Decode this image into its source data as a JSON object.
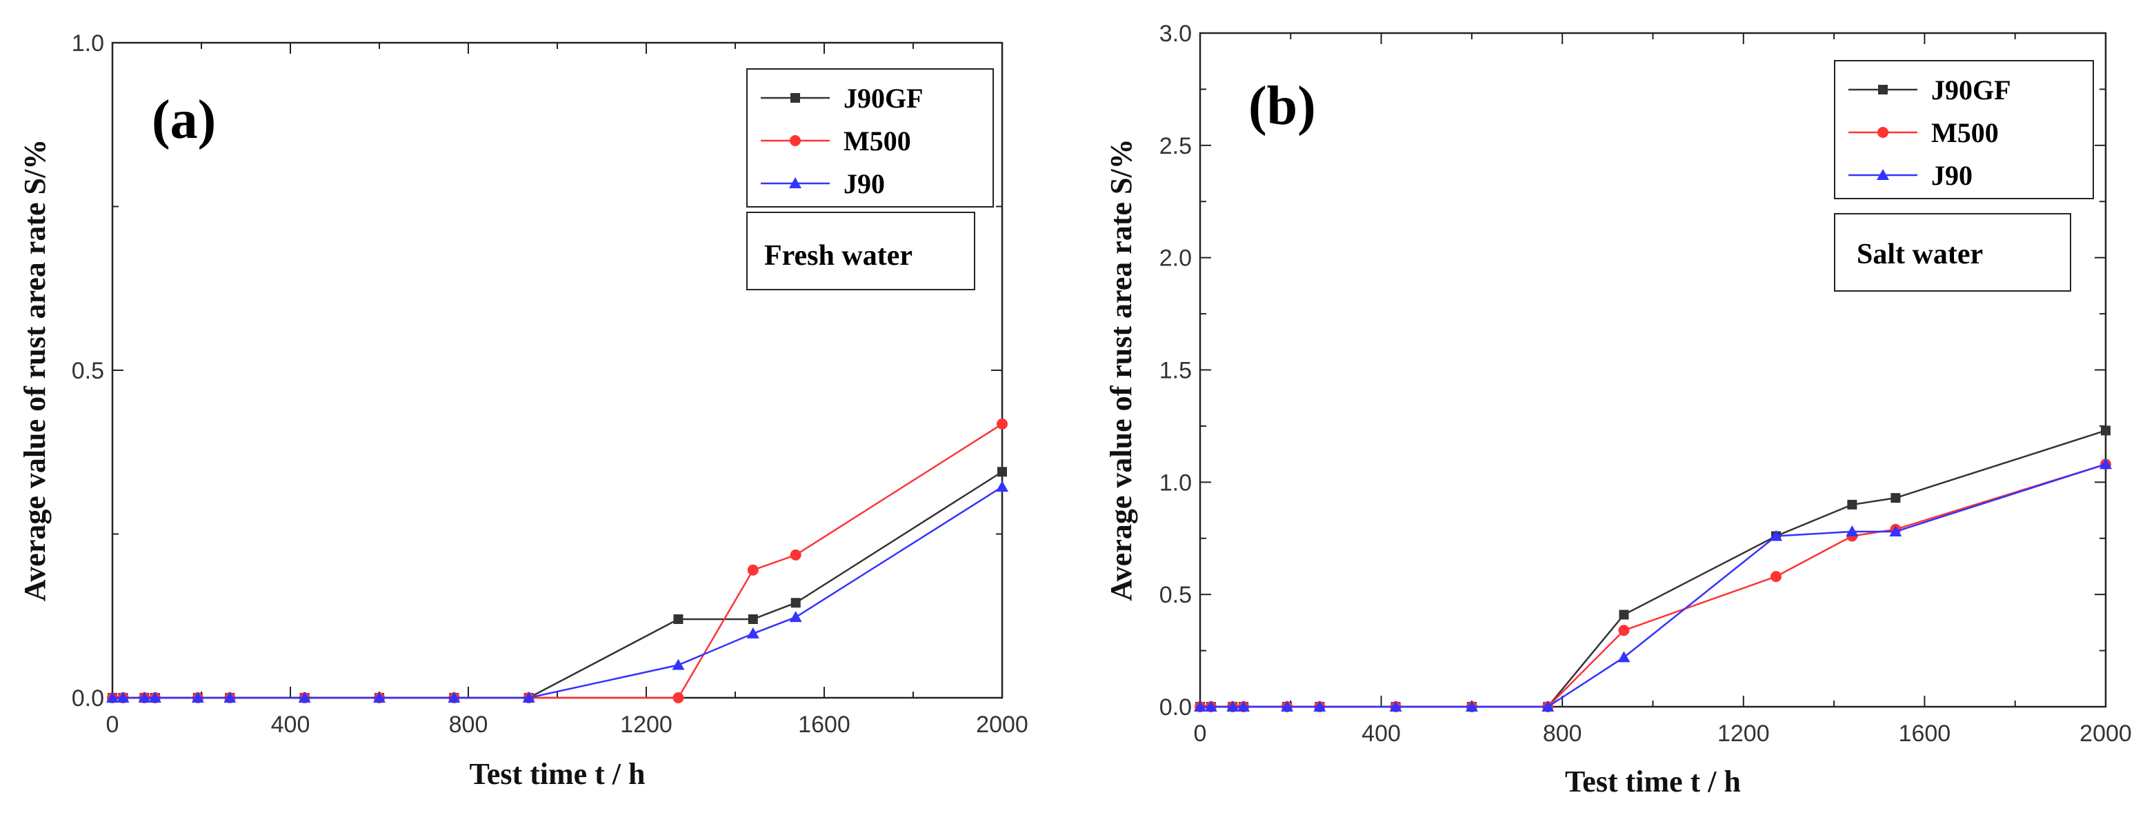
{
  "chart_data": [
    {
      "type": "line",
      "panel_label": "(a)",
      "condition": "Fresh water",
      "xlabel": "Test time  t / h",
      "ylabel": "Average value of rust area rate S/%",
      "xlim": [
        0,
        2000
      ],
      "ylim": [
        0,
        1.0
      ],
      "x_ticks": [
        "0",
        "400",
        "800",
        "1200",
        "1600",
        "2000"
      ],
      "y_ticks": [
        "0.0",
        "0.5",
        "1.0"
      ],
      "legend": [
        "J90GF",
        "M500",
        "J90"
      ],
      "series": [
        {
          "name": "J90GF",
          "color": "#333333",
          "marker": "square",
          "x": [
            0,
            24,
            72,
            96,
            192,
            264,
            432,
            600,
            768,
            936,
            1272,
            1440,
            1536,
            2000
          ],
          "y": [
            0,
            0,
            0,
            0,
            0,
            0,
            0,
            0,
            0,
            0,
            0.12,
            0.12,
            0.145,
            0.345
          ]
        },
        {
          "name": "M500",
          "color": "#ff3333",
          "marker": "circle",
          "x": [
            0,
            24,
            72,
            96,
            192,
            264,
            432,
            600,
            768,
            936,
            1272,
            1440,
            1536,
            2000
          ],
          "y": [
            0,
            0,
            0,
            0,
            0,
            0,
            0,
            0,
            0,
            0,
            0,
            0.195,
            0.218,
            0.418
          ]
        },
        {
          "name": "J90",
          "color": "#3333ff",
          "marker": "triangle",
          "x": [
            0,
            24,
            72,
            96,
            192,
            264,
            432,
            600,
            768,
            936,
            1272,
            1440,
            1536,
            2000
          ],
          "y": [
            0,
            0,
            0,
            0,
            0,
            0,
            0,
            0,
            0,
            0,
            0.05,
            0.098,
            0.123,
            0.322
          ]
        }
      ]
    },
    {
      "type": "line",
      "panel_label": "(b)",
      "condition": "Salt water",
      "xlabel": "Test time  t / h",
      "ylabel": "Average value of rust area rate S/%",
      "xlim": [
        0,
        2000
      ],
      "ylim": [
        0,
        3.0
      ],
      "x_ticks": [
        "0",
        "400",
        "800",
        "1200",
        "1600",
        "2000"
      ],
      "y_ticks": [
        "0.0",
        "0.5",
        "1.0",
        "1.5",
        "2.0",
        "2.5",
        "3.0"
      ],
      "legend": [
        "J90GF",
        "M500",
        "J90"
      ],
      "series": [
        {
          "name": "J90GF",
          "color": "#333333",
          "marker": "square",
          "x": [
            0,
            24,
            72,
            96,
            192,
            264,
            432,
            600,
            768,
            936,
            1272,
            1440,
            1536,
            2000
          ],
          "y": [
            0,
            0,
            0,
            0,
            0,
            0,
            0,
            0,
            0,
            0.41,
            0.76,
            0.9,
            0.93,
            1.23
          ]
        },
        {
          "name": "M500",
          "color": "#ff3333",
          "marker": "circle",
          "x": [
            0,
            24,
            72,
            96,
            192,
            264,
            432,
            600,
            768,
            936,
            1272,
            1440,
            1536,
            2000
          ],
          "y": [
            0,
            0,
            0,
            0,
            0,
            0,
            0,
            0,
            0,
            0.34,
            0.58,
            0.76,
            0.79,
            1.08
          ]
        },
        {
          "name": "J90",
          "color": "#3333ff",
          "marker": "triangle",
          "x": [
            0,
            24,
            72,
            96,
            192,
            264,
            432,
            600,
            768,
            936,
            1272,
            1440,
            1536,
            2000
          ],
          "y": [
            0,
            0,
            0,
            0,
            0,
            0,
            0,
            0,
            0,
            0.22,
            0.76,
            0.78,
            0.78,
            1.08
          ]
        }
      ]
    }
  ]
}
